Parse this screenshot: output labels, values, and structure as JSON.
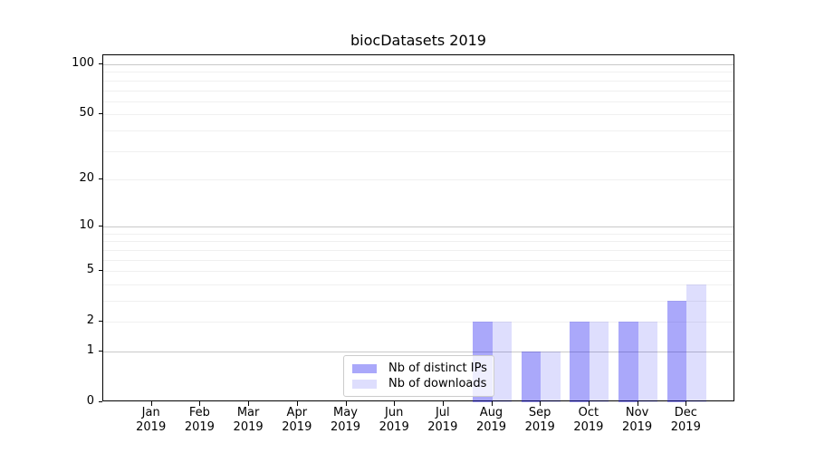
{
  "chart_data": {
    "type": "bar",
    "title": "biocDatasets 2019",
    "categories": [
      "Jan",
      "Feb",
      "Mar",
      "Apr",
      "May",
      "Jun",
      "Jul",
      "Aug",
      "Sep",
      "Oct",
      "Nov",
      "Dec"
    ],
    "x_year": "2019",
    "series": [
      {
        "name": "Nb of distinct IPs",
        "values": [
          0,
          0,
          0,
          0,
          0,
          0,
          0,
          2,
          1,
          2,
          2,
          3
        ],
        "color": "rgba(11,6,240,0.35)",
        "hex_on_white": "#aaa8fa"
      },
      {
        "name": "Nb of downloads",
        "values": [
          0,
          0,
          0,
          0,
          0,
          0,
          0,
          2,
          1,
          2,
          2,
          4
        ],
        "color": "rgba(11,6,240,0.133)",
        "hex_on_white": "#deddfd"
      }
    ],
    "y_axis": {
      "scale": "log1p",
      "ticks": [
        100,
        50,
        20,
        10,
        5,
        2,
        1,
        0
      ],
      "major_gridlines": [
        1,
        10,
        100
      ],
      "minor_gridlines": [
        2,
        3,
        4,
        5,
        6,
        7,
        8,
        9,
        20,
        30,
        40,
        50,
        60,
        70,
        80,
        90
      ],
      "ylim": [
        0,
        113.3
      ]
    },
    "bar_width": 0.4,
    "grid": "on",
    "legend_position": "lower center",
    "colors": {
      "minor_grid": "#f0f0f0",
      "major_grid": "#c9c9c9",
      "spine": "#000000",
      "legend_border": "#cccccc"
    }
  }
}
